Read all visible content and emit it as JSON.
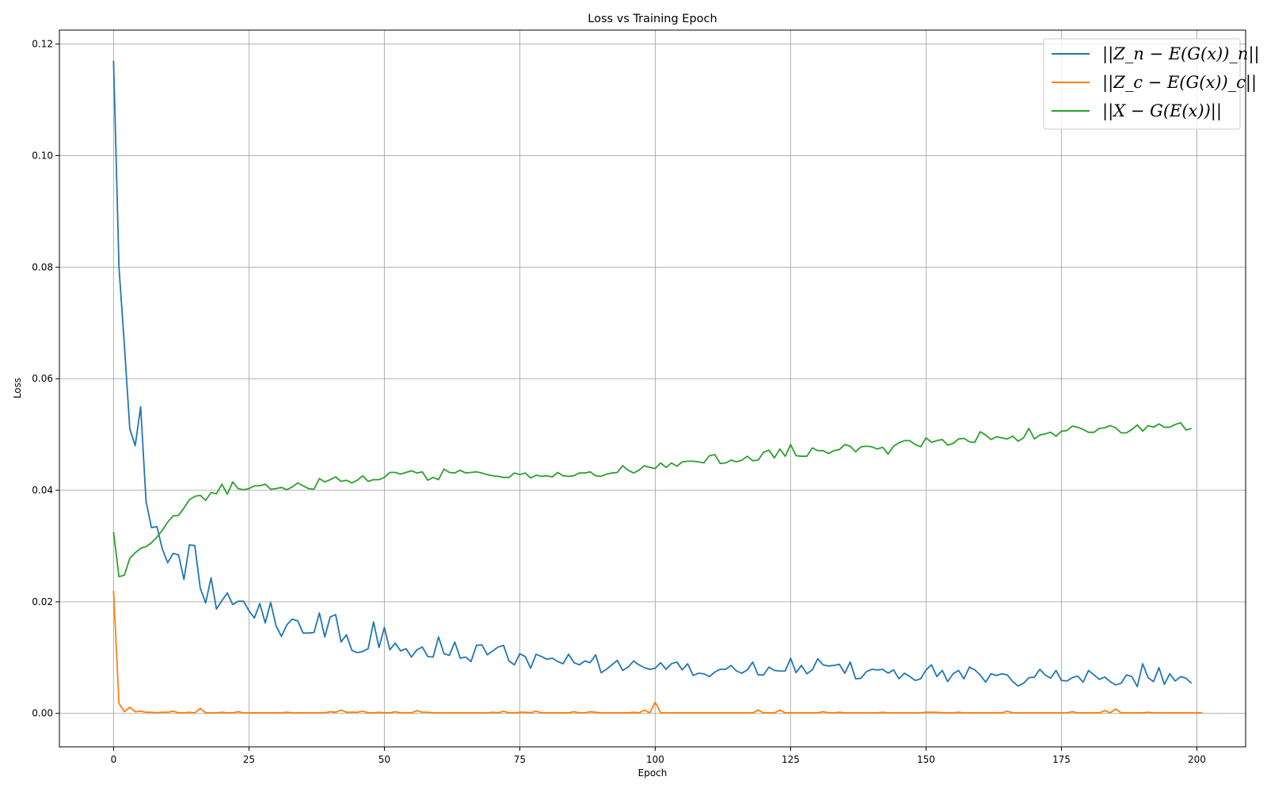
{
  "chart_data": {
    "type": "line",
    "title": "Loss vs Training Epoch",
    "xlabel": "Epoch",
    "ylabel": "Loss",
    "xlim": [
      -10,
      209
    ],
    "ylim": [
      -0.006,
      0.1225
    ],
    "x_ticks": [
      0,
      25,
      50,
      75,
      100,
      125,
      150,
      175,
      200
    ],
    "x_tick_labels": [
      "0",
      "25",
      "50",
      "75",
      "100",
      "125",
      "150",
      "175",
      "200"
    ],
    "y_ticks": [
      0.0,
      0.02,
      0.04,
      0.06,
      0.08,
      0.1,
      0.12
    ],
    "y_tick_labels": [
      "0.00",
      "0.02",
      "0.04",
      "0.06",
      "0.08",
      "0.10",
      "0.12"
    ],
    "grid": true,
    "legend_position": "top-right",
    "x_start": 0,
    "x_step": 1,
    "series": [
      {
        "name": "||Z_n − E(G(x))_n||",
        "color": "#1f77b4",
        "values": [
          0.117,
          0.08,
          0.066,
          0.051,
          0.048,
          0.055,
          0.038,
          0.0333,
          0.0335,
          0.0295,
          0.027,
          0.0287,
          0.0284,
          0.024,
          0.0302,
          0.0301,
          0.0225,
          0.0198,
          0.0243,
          0.0187,
          0.0202,
          0.0216,
          0.0195,
          0.0201,
          0.0201,
          0.0184,
          0.0171,
          0.0197,
          0.0162,
          0.0199,
          0.0157,
          0.0138,
          0.0159,
          0.0169,
          0.0166,
          0.0144,
          0.0144,
          0.0145,
          0.018,
          0.0137,
          0.0173,
          0.0177,
          0.0128,
          0.0141,
          0.0113,
          0.0109,
          0.0111,
          0.0116,
          0.0164,
          0.0118,
          0.0154,
          0.0114,
          0.0126,
          0.0112,
          0.0116,
          0.0101,
          0.0114,
          0.0119,
          0.0102,
          0.0101,
          0.0137,
          0.0107,
          0.0104,
          0.0128,
          0.0099,
          0.0101,
          0.0093,
          0.0122,
          0.0123,
          0.0105,
          0.0112,
          0.0119,
          0.0122,
          0.0094,
          0.0087,
          0.0107,
          0.0102,
          0.0081,
          0.0106,
          0.0102,
          0.0097,
          0.0099,
          0.0093,
          0.0089,
          0.0106,
          0.0091,
          0.0087,
          0.0094,
          0.0091,
          0.0105,
          0.0073,
          0.0079,
          0.0087,
          0.0095,
          0.0077,
          0.0083,
          0.0094,
          0.0087,
          0.0082,
          0.0079,
          0.0081,
          0.0091,
          0.0079,
          0.0089,
          0.0092,
          0.0078,
          0.0089,
          0.0068,
          0.0072,
          0.0071,
          0.0066,
          0.0074,
          0.0079,
          0.0079,
          0.0086,
          0.0076,
          0.0072,
          0.0078,
          0.0092,
          0.0069,
          0.0069,
          0.0083,
          0.0077,
          0.0076,
          0.0076,
          0.0099,
          0.0073,
          0.0086,
          0.0071,
          0.0078,
          0.0098,
          0.0087,
          0.0085,
          0.0086,
          0.0088,
          0.0072,
          0.0092,
          0.0062,
          0.0063,
          0.0075,
          0.0079,
          0.0078,
          0.0079,
          0.0072,
          0.0078,
          0.0062,
          0.0072,
          0.0066,
          0.0059,
          0.0062,
          0.0078,
          0.0087,
          0.0066,
          0.0077,
          0.0057,
          0.0071,
          0.0077,
          0.0062,
          0.0083,
          0.0078,
          0.0069,
          0.0056,
          0.0071,
          0.0068,
          0.0071,
          0.0069,
          0.0057,
          0.0049,
          0.0054,
          0.0064,
          0.0065,
          0.0079,
          0.0069,
          0.0063,
          0.0077,
          0.0059,
          0.0058,
          0.0064,
          0.0067,
          0.0056,
          0.0077,
          0.0069,
          0.0061,
          0.0065,
          0.0057,
          0.0051,
          0.0054,
          0.0069,
          0.0066,
          0.0048,
          0.0089,
          0.0064,
          0.0057,
          0.0082,
          0.0052,
          0.0071,
          0.0058,
          0.0066,
          0.0063,
          0.0054
        ]
      },
      {
        "name": "||Z_c − E(G(x))_c||",
        "color": "#ff7f0e",
        "values": [
          0.022,
          0.0018,
          0.0003,
          0.0011,
          0.0003,
          0.0004,
          0.0002,
          0.0002,
          0.0001,
          0.0002,
          0.0002,
          0.0004,
          0.0001,
          0.0001,
          0.0002,
          0.0001,
          0.0009,
          0.0001,
          0.0001,
          0.0001,
          0.0002,
          0.0001,
          0.0001,
          0.0003,
          0.0001,
          0.0001,
          0.0001,
          0.0001,
          0.0001,
          0.0001,
          0.0001,
          0.0001,
          0.0002,
          0.0001,
          0.0001,
          0.0001,
          0.0001,
          0.0001,
          0.0001,
          0.0001,
          0.0003,
          0.0002,
          0.0006,
          0.0002,
          0.0002,
          0.0002,
          0.0004,
          0.0001,
          0.0001,
          0.0002,
          0.0001,
          0.0001,
          0.0003,
          0.0001,
          0.0001,
          0.0001,
          0.0005,
          0.0002,
          0.0002,
          0.0001,
          0.0001,
          0.0001,
          0.0001,
          0.0001,
          0.0001,
          0.0001,
          0.0001,
          0.0001,
          0.0001,
          0.0001,
          0.0002,
          0.0001,
          0.0004,
          0.0001,
          0.0001,
          0.0002,
          0.0002,
          0.0001,
          0.0004,
          0.0001,
          0.0001,
          0.0001,
          0.0001,
          0.0001,
          0.0001,
          0.0003,
          0.0001,
          0.0001,
          0.0003,
          0.0002,
          0.0001,
          0.0001,
          0.0001,
          0.0001,
          0.0001,
          0.0001,
          0.0002,
          0.0001,
          0.0006,
          0.0001,
          0.002,
          0.0001,
          0.0001,
          0.0001,
          0.0001,
          0.0001,
          0.0001,
          0.0001,
          0.0001,
          0.0001,
          0.0001,
          0.0001,
          0.0001,
          0.0001,
          0.0001,
          0.0001,
          0.0001,
          0.0001,
          0.0001,
          0.0006,
          0.0001,
          0.0001,
          0.0001,
          0.0006,
          0.0001,
          0.0001,
          0.0001,
          0.0001,
          0.0001,
          0.0001,
          0.0001,
          0.0003,
          0.0001,
          0.0001,
          0.0002,
          0.0001,
          0.0001,
          0.0001,
          0.0001,
          0.0001,
          0.0001,
          0.0001,
          0.0002,
          0.0001,
          0.0001,
          0.0001,
          0.0001,
          0.0001,
          0.0001,
          0.0001,
          0.0002,
          0.0002,
          0.0002,
          0.0001,
          0.0001,
          0.0001,
          0.0002,
          0.0001,
          0.0001,
          0.0001,
          0.0001,
          0.0001,
          0.0001,
          0.0001,
          0.0001,
          0.0004,
          0.0001,
          0.0001,
          0.0001,
          0.0001,
          0.0001,
          0.0001,
          0.0001,
          0.0001,
          0.0001,
          0.0001,
          0.0001,
          0.0003,
          0.0001,
          0.0001,
          0.0001,
          0.0001,
          0.0001,
          0.0005,
          0.0001,
          0.0008,
          0.0001,
          0.0001,
          0.0001,
          0.0001,
          0.0001,
          0.0002,
          0.0001,
          0.0001,
          0.0001,
          0.0001,
          0.0001,
          0.0001,
          0.0001,
          0.0001,
          0.0001,
          0.0001
        ]
      },
      {
        "name": "||X − G(E(x))||",
        "color": "#2ca02c",
        "values": [
          0.0325,
          0.0245,
          0.0248,
          0.0278,
          0.0288,
          0.0296,
          0.0299,
          0.0306,
          0.0316,
          0.0328,
          0.0343,
          0.0354,
          0.0355,
          0.0368,
          0.0383,
          0.0389,
          0.0391,
          0.0382,
          0.0396,
          0.0394,
          0.0411,
          0.0393,
          0.0415,
          0.0403,
          0.0401,
          0.0403,
          0.0408,
          0.0408,
          0.0411,
          0.0402,
          0.0403,
          0.0405,
          0.0401,
          0.0406,
          0.0413,
          0.0408,
          0.0403,
          0.0402,
          0.0421,
          0.0415,
          0.0419,
          0.0424,
          0.0416,
          0.0418,
          0.0413,
          0.0418,
          0.0426,
          0.0416,
          0.0419,
          0.0419,
          0.0423,
          0.0432,
          0.0432,
          0.0429,
          0.0432,
          0.0435,
          0.0431,
          0.0433,
          0.0418,
          0.0423,
          0.0419,
          0.0438,
          0.0432,
          0.0431,
          0.0436,
          0.0431,
          0.0432,
          0.0433,
          0.0431,
          0.0428,
          0.0426,
          0.0425,
          0.0423,
          0.0423,
          0.0431,
          0.0428,
          0.0431,
          0.0422,
          0.0427,
          0.0425,
          0.0426,
          0.0424,
          0.0432,
          0.0426,
          0.0425,
          0.0426,
          0.0431,
          0.0431,
          0.0433,
          0.0426,
          0.0425,
          0.0429,
          0.0431,
          0.0432,
          0.0444,
          0.0436,
          0.0431,
          0.0436,
          0.0444,
          0.0441,
          0.0439,
          0.0449,
          0.0441,
          0.0449,
          0.0443,
          0.0451,
          0.0452,
          0.0452,
          0.0451,
          0.0449,
          0.0462,
          0.0464,
          0.0448,
          0.0449,
          0.0454,
          0.0451,
          0.0454,
          0.0461,
          0.0453,
          0.0454,
          0.0468,
          0.0472,
          0.0458,
          0.0474,
          0.0461,
          0.0482,
          0.0462,
          0.0461,
          0.0461,
          0.0476,
          0.0471,
          0.0471,
          0.0466,
          0.0471,
          0.0473,
          0.0482,
          0.0479,
          0.0469,
          0.0478,
          0.0479,
          0.0478,
          0.0474,
          0.0477,
          0.0465,
          0.0479,
          0.0485,
          0.0489,
          0.0489,
          0.0482,
          0.0478,
          0.0494,
          0.0486,
          0.0489,
          0.0491,
          0.0481,
          0.0484,
          0.0492,
          0.0493,
          0.0487,
          0.0486,
          0.0505,
          0.0499,
          0.0491,
          0.0496,
          0.0494,
          0.0492,
          0.0497,
          0.0488,
          0.0494,
          0.0511,
          0.0492,
          0.0499,
          0.0501,
          0.0504,
          0.0497,
          0.0506,
          0.0507,
          0.0515,
          0.0513,
          0.0509,
          0.0504,
          0.0504,
          0.0511,
          0.0512,
          0.0516,
          0.0512,
          0.0503,
          0.0503,
          0.0509,
          0.0517,
          0.0506,
          0.0516,
          0.0513,
          0.0519,
          0.0513,
          0.0513,
          0.0518,
          0.0521,
          0.0508,
          0.0511
        ]
      }
    ]
  }
}
